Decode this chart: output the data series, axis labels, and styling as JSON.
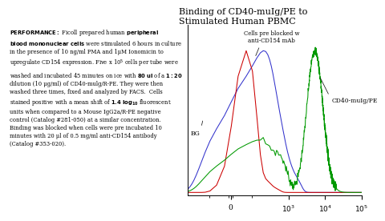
{
  "title": "Binding of CD40-muIg/PE to\nStimulated Human PBMC",
  "title_fontsize": 8,
  "annotation_bg": "BG",
  "annotation_blocked": "Cells pre blocked w\nanti-CD154 mAb",
  "annotation_cd40": "CD40-muIg/PE",
  "bg_color": "#ffffff",
  "plot_bg": "#ffffff",
  "red_line_color": "#cc0000",
  "blue_line_color": "#3333cc",
  "green_line_color": "#009900",
  "tick_fontsize": 6.5
}
